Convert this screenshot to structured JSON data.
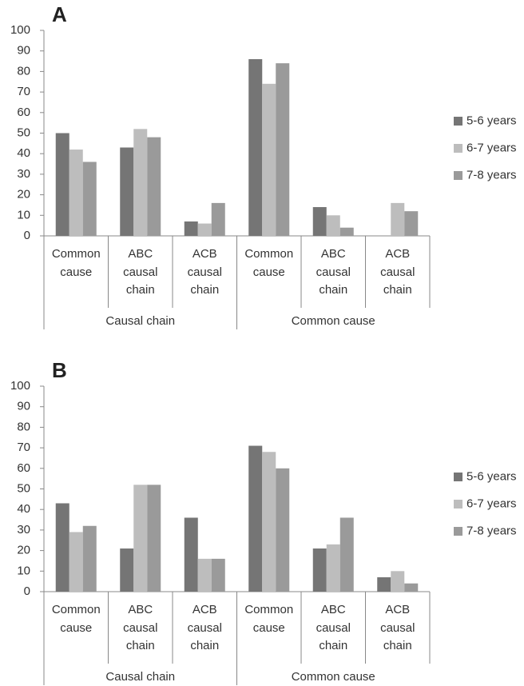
{
  "chart_data": [
    {
      "type": "bar",
      "title": "A",
      "groups": [
        {
          "name": "Causal chain",
          "categories": [
            "Common cause",
            "ABC causal chain",
            "ACB causal chain"
          ]
        },
        {
          "name": "Common cause",
          "categories": [
            "Common cause",
            "ABC causal chain",
            "ACB causal chain"
          ]
        }
      ],
      "series": [
        {
          "name": "5-6 years",
          "color": "#757575",
          "values": [
            50,
            43,
            7,
            86,
            14,
            0
          ]
        },
        {
          "name": "6-7 years",
          "color": "#bdbdbd",
          "values": [
            42,
            52,
            6,
            74,
            10,
            16
          ]
        },
        {
          "name": "7-8 years",
          "color": "#9a9a9a",
          "values": [
            36,
            48,
            16,
            84,
            4,
            12
          ]
        }
      ],
      "ylim": [
        0,
        100
      ],
      "yticks": [
        0,
        10,
        20,
        30,
        40,
        50,
        60,
        70,
        80,
        90,
        100
      ],
      "grid": false,
      "legend": "right"
    },
    {
      "type": "bar",
      "title": "B",
      "groups": [
        {
          "name": "Causal chain",
          "categories": [
            "Common cause",
            "ABC causal chain",
            "ACB causal chain"
          ]
        },
        {
          "name": "Common cause",
          "categories": [
            "Common cause",
            "ABC causal chain",
            "ACB causal chain"
          ]
        }
      ],
      "series": [
        {
          "name": "5-6 years",
          "color": "#757575",
          "values": [
            43,
            21,
            36,
            71,
            21,
            7
          ]
        },
        {
          "name": "6-7 years",
          "color": "#bdbdbd",
          "values": [
            29,
            52,
            16,
            68,
            23,
            10
          ]
        },
        {
          "name": "7-8 years",
          "color": "#9a9a9a",
          "values": [
            32,
            52,
            16,
            60,
            36,
            4
          ]
        }
      ],
      "ylim": [
        0,
        100
      ],
      "yticks": [
        0,
        10,
        20,
        30,
        40,
        50,
        60,
        70,
        80,
        90,
        100
      ],
      "grid": false,
      "legend": "right"
    }
  ]
}
